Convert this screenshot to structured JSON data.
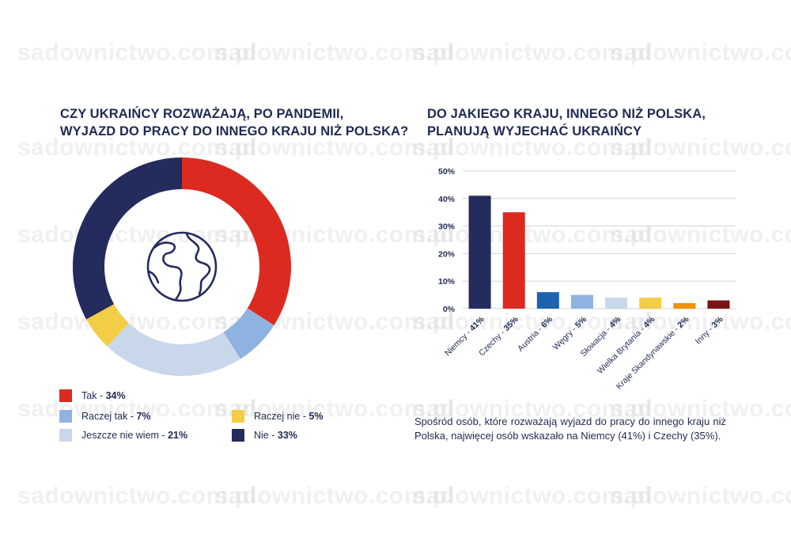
{
  "watermark": "sadownictwo.com.pl",
  "left_chart": {
    "title_lines": [
      "CZY UKRAIŃCY ROZWAŻAJĄ, PO PANDEMII,",
      "WYJAZD DO PRACY DO INNEGO KRAJU NIŻ POLSKA?"
    ],
    "center_icon": "globe-icon"
  },
  "right_chart": {
    "title_lines": [
      "DO JAKIEGO KRAJU, INNEGO NIŻ POLSKA,",
      "PLANUJĄ WYJECHAĆ UKRAIŃCY"
    ]
  },
  "chart_data": [
    {
      "type": "pie",
      "style": "donut",
      "categories": [
        "Tak",
        "Raczej tak",
        "Jeszcze nie wiem",
        "Raczej nie",
        "Nie"
      ],
      "values": [
        34,
        7,
        21,
        5,
        33
      ],
      "value_labels": [
        "34%",
        "7%",
        "21%",
        "5%",
        "33%"
      ],
      "colors": [
        "#dc2a20",
        "#8fb3e0",
        "#c9d7ea",
        "#f3cd45",
        "#232c5c"
      ],
      "legend": "bottom"
    },
    {
      "type": "bar",
      "categories": [
        "Niemcy",
        "Czechy",
        "Austria",
        "Węgry",
        "Słowacja",
        "Wielka Brytania",
        "Kraje Skandynawskie",
        "Inny"
      ],
      "values": [
        41,
        35,
        6,
        5,
        4,
        4,
        2,
        3
      ],
      "value_labels": [
        "41%",
        "35%",
        "6%",
        "5%",
        "4%",
        "4%",
        "2%",
        "3%"
      ],
      "colors": [
        "#232c5c",
        "#dc2a20",
        "#1e63b0",
        "#8fb3e0",
        "#c9d7ea",
        "#f3cd45",
        "#f39200",
        "#7a1414"
      ],
      "ylim": [
        0,
        50
      ],
      "yticks": [
        0,
        10,
        20,
        30,
        40,
        50
      ],
      "ytick_labels": [
        "0%",
        "10%",
        "20%",
        "30%",
        "40%",
        "50%"
      ],
      "grid": true,
      "xlabel": "",
      "ylabel": ""
    }
  ],
  "note": "Spośród osób, które rozważają wyjazd do pracy do innego kraju niż Polska, najwięcej osób wskazało na Niemcy (41%) i Czechy (35%)."
}
